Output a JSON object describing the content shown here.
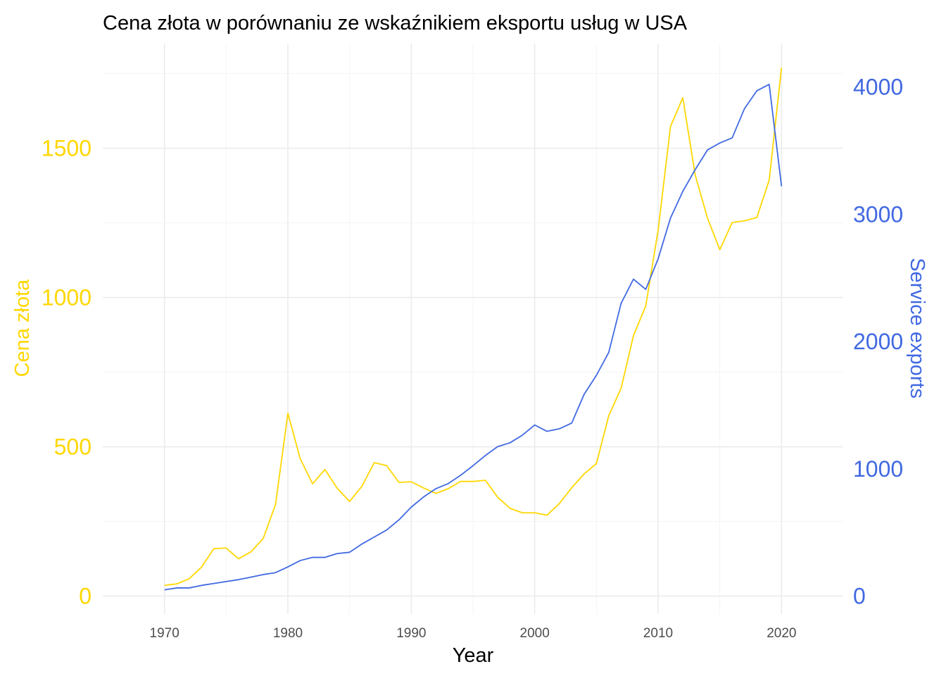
{
  "chart_data": {
    "type": "line",
    "title": "Cena złota w porównaniu ze wskaźnikiem eksportu usług w USA",
    "xlabel": "Year",
    "ylabel_left": "Cena złota",
    "ylabel_right": "Service exports",
    "xlim": [
      1965,
      2025
    ],
    "x_ticks": [
      "1970",
      "1980",
      "1990",
      "2000",
      "2010",
      "2020"
    ],
    "left_axis": {
      "ylim": [
        -60,
        1850
      ],
      "ticks": [
        "0",
        "500",
        "1000",
        "1500"
      ],
      "color": "#FFD700"
    },
    "right_axis": {
      "ylim": [
        -140,
        4340
      ],
      "ticks": [
        "0",
        "1000",
        "2000",
        "3000",
        "4000"
      ],
      "color": "#4169E1"
    },
    "grid": true,
    "x": [
      1970,
      1971,
      1972,
      1973,
      1974,
      1975,
      1976,
      1977,
      1978,
      1979,
      1980,
      1981,
      1982,
      1983,
      1984,
      1985,
      1986,
      1987,
      1988,
      1989,
      1990,
      1991,
      1992,
      1993,
      1994,
      1995,
      1996,
      1997,
      1998,
      1999,
      2000,
      2001,
      2002,
      2003,
      2004,
      2005,
      2006,
      2007,
      2008,
      2009,
      2010,
      2011,
      2012,
      2013,
      2014,
      2015,
      2016,
      2017,
      2018,
      2019,
      2020
    ],
    "series": [
      {
        "axis": "left",
        "color": "#FFD700",
        "values": [
          36,
          41,
          58,
          97,
          159,
          161,
          125,
          148,
          193,
          307,
          612,
          460,
          376,
          424,
          361,
          317,
          368,
          447,
          437,
          381,
          383,
          362,
          344,
          360,
          384,
          384,
          388,
          331,
          294,
          279,
          279,
          271,
          310,
          363,
          409,
          444,
          604,
          696,
          872,
          972,
          1225,
          1572,
          1669,
          1411,
          1266,
          1160,
          1251,
          1257,
          1268,
          1393,
          1770
        ]
      },
      {
        "axis": "right",
        "color": "#4169E1",
        "values": [
          50,
          65,
          65,
          85,
          100,
          115,
          130,
          150,
          170,
          185,
          230,
          280,
          305,
          305,
          335,
          345,
          410,
          465,
          520,
          600,
          700,
          780,
          845,
          885,
          950,
          1025,
          1105,
          1175,
          1205,
          1265,
          1345,
          1295,
          1315,
          1360,
          1585,
          1735,
          1915,
          2300,
          2490,
          2410,
          2650,
          2970,
          3180,
          3350,
          3505,
          3560,
          3600,
          3830,
          3970,
          4020,
          3220
        ]
      }
    ]
  }
}
